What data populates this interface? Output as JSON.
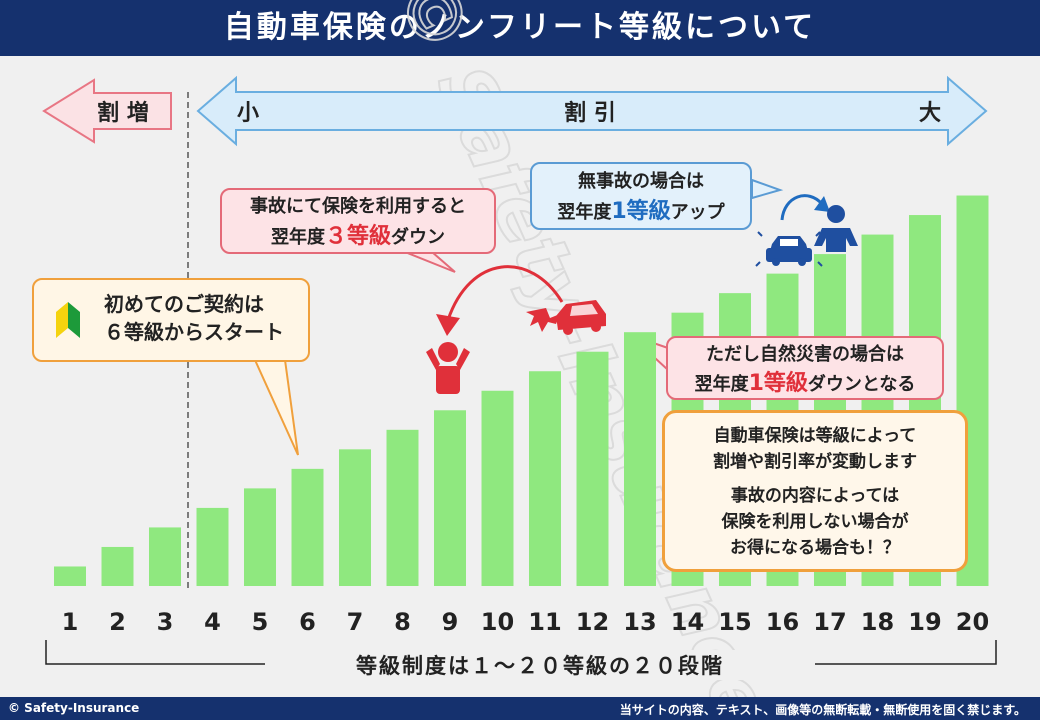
{
  "header": {
    "title": "自動車保険のノンフリート等級について"
  },
  "footer": {
    "copyright": "© Safety-Insurance",
    "notice": "当サイトの内容、テキスト、画像等の無断転載・無断使用を固く禁じます。"
  },
  "watermark": "© Safety-Insurance",
  "arrows": {
    "increase_label": "割 増",
    "small_label": "小",
    "discount_label": "割 引",
    "large_label": "大"
  },
  "callouts": {
    "beginner": {
      "line1": "初めてのご契約は",
      "line2": "６等級からスタート"
    },
    "accident": {
      "line1": "事故にて保険を利用すると",
      "line2_pre": "翌年度",
      "line2_em": "３等級",
      "line2_post": "ダウン"
    },
    "no_accident": {
      "line1": "無事故の場合は",
      "line2_pre": "翌年度",
      "line2_em": "1等級",
      "line2_post": "アップ"
    },
    "disaster": {
      "line1": "ただし自然災害の場合は",
      "line2_pre": "翌年度",
      "line2_em": "1等級",
      "line2_post": "ダウンとなる"
    },
    "info": {
      "line1": "自動車保険は等級によって",
      "line2": "割増や割引率が変動します",
      "line3": "事故の内容によっては",
      "line4": "保険を利用しない場合が",
      "line5": "お得になる場合も！？"
    }
  },
  "bottom_label": "等級制度は１～２０等級の２０段階",
  "colors": {
    "header": "#15316e",
    "bar": "#8fe87f",
    "arrow_fill": "#d8ecfa",
    "arrow_stroke": "#6aaee0",
    "accent_red": "#e0303a",
    "accent_blue": "#1f6cc0"
  },
  "chart_data": {
    "type": "bar",
    "categories": [
      "1",
      "2",
      "3",
      "4",
      "5",
      "6",
      "7",
      "8",
      "9",
      "10",
      "11",
      "12",
      "13",
      "14",
      "15",
      "16",
      "17",
      "18",
      "19",
      "20"
    ],
    "values": [
      1,
      2,
      3,
      4,
      5,
      6,
      7,
      8,
      9,
      10,
      11,
      12,
      13,
      14,
      15,
      16,
      17,
      18,
      19,
      20
    ],
    "ylim": [
      0,
      21
    ]
  }
}
